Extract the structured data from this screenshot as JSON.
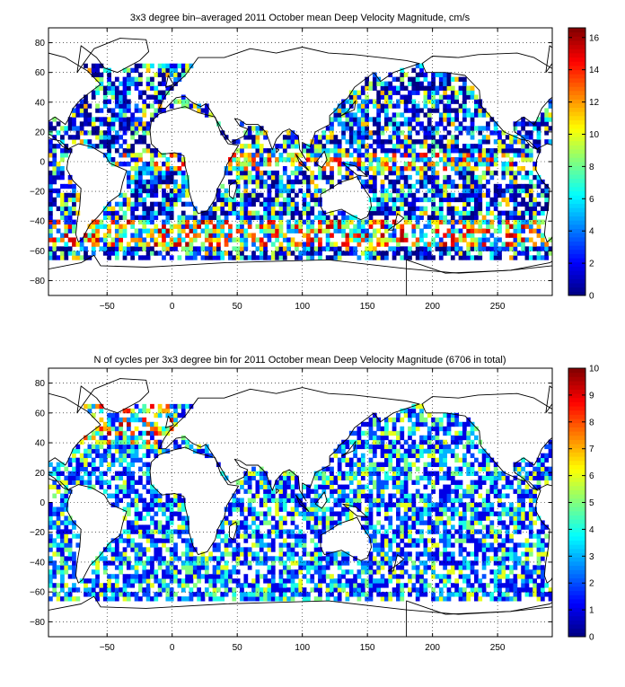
{
  "chart_data": [
    {
      "type": "heatmap",
      "title": "3x3 degree bin–averaged 2011 October mean Deep Velocity Magnitude, cm/s",
      "xlabel": "",
      "ylabel": "",
      "xlim": [
        -95,
        292
      ],
      "ylim": [
        -90,
        90
      ],
      "xticks": [
        -50,
        0,
        50,
        100,
        150,
        200,
        250
      ],
      "yticks": [
        -80,
        -60,
        -40,
        -20,
        0,
        20,
        40,
        60,
        80
      ],
      "grid": "dotted",
      "bin_size_deg": 3,
      "colorbar": {
        "min": 0,
        "max": 16.6,
        "ticks": [
          0,
          2,
          4,
          6,
          8,
          10,
          12,
          14,
          16
        ],
        "colormap": "jet"
      },
      "field": "velocity",
      "seed": 20111
    },
    {
      "type": "heatmap",
      "title": "N of cycles per 3x3 degree bin for 2011 October mean Deep Velocity Magnitude (6706 in total)",
      "xlabel": "",
      "ylabel": "",
      "xlim": [
        -95,
        292
      ],
      "ylim": [
        -90,
        90
      ],
      "xticks": [
        -50,
        0,
        50,
        100,
        150,
        200,
        250
      ],
      "yticks": [
        -80,
        -60,
        -40,
        -20,
        0,
        20,
        40,
        60,
        80
      ],
      "grid": "dotted",
      "bin_size_deg": 3,
      "total_cycles": 6706,
      "colorbar": {
        "min": 0,
        "max": 10,
        "ticks": [
          0,
          1,
          2,
          3,
          4,
          5,
          6,
          7,
          8,
          9,
          10
        ],
        "colormap": "jet"
      },
      "field": "count",
      "seed": 20112
    }
  ]
}
